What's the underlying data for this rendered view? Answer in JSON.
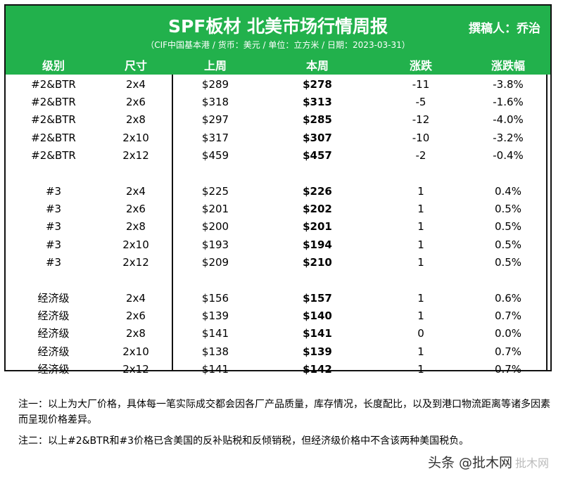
{
  "header": {
    "title": "SPF板材 北美市场行情周报",
    "author": "撰稿人：乔治",
    "subtitle": "（CIF中国基本港 / 货币：美元 / 单位：立方米 / 日期：2023-03-31）",
    "columns": [
      "级别",
      "尺寸",
      "上周",
      "本周",
      "涨跌",
      "涨跌幅"
    ],
    "bg_color": "#22b14c"
  },
  "groups": [
    {
      "rows": [
        {
          "grade": "#2&BTR",
          "size": "2x4",
          "last": "$289",
          "this": "$278",
          "change": "-11",
          "pct": "-3.8%"
        },
        {
          "grade": "#2&BTR",
          "size": "2x6",
          "last": "$318",
          "this": "$313",
          "change": "-5",
          "pct": "-1.6%"
        },
        {
          "grade": "#2&BTR",
          "size": "2x8",
          "last": "$297",
          "this": "$285",
          "change": "-12",
          "pct": "-4.0%"
        },
        {
          "grade": "#2&BTR",
          "size": "2x10",
          "last": "$317",
          "this": "$307",
          "change": "-10",
          "pct": "-3.2%"
        },
        {
          "grade": "#2&BTR",
          "size": "2x12",
          "last": "$459",
          "this": "$457",
          "change": "-2",
          "pct": "-0.4%"
        }
      ]
    },
    {
      "rows": [
        {
          "grade": "#3",
          "size": "2x4",
          "last": "$225",
          "this": "$226",
          "change": "1",
          "pct": "0.4%"
        },
        {
          "grade": "#3",
          "size": "2x6",
          "last": "$201",
          "this": "$202",
          "change": "1",
          "pct": "0.5%"
        },
        {
          "grade": "#3",
          "size": "2x8",
          "last": "$200",
          "this": "$201",
          "change": "1",
          "pct": "0.5%"
        },
        {
          "grade": "#3",
          "size": "2x10",
          "last": "$193",
          "this": "$194",
          "change": "1",
          "pct": "0.5%"
        },
        {
          "grade": "#3",
          "size": "2x12",
          "last": "$209",
          "this": "$210",
          "change": "1",
          "pct": "0.5%"
        }
      ]
    },
    {
      "rows": [
        {
          "grade": "经济级",
          "size": "2x4",
          "last": "$156",
          "this": "$157",
          "change": "1",
          "pct": "0.6%"
        },
        {
          "grade": "经济级",
          "size": "2x6",
          "last": "$139",
          "this": "$140",
          "change": "1",
          "pct": "0.7%"
        },
        {
          "grade": "经济级",
          "size": "2x8",
          "last": "$141",
          "this": "$141",
          "change": "0",
          "pct": "0.0%"
        },
        {
          "grade": "经济级",
          "size": "2x10",
          "last": "$138",
          "this": "$139",
          "change": "1",
          "pct": "0.7%"
        },
        {
          "grade": "经济级",
          "size": "2x12",
          "last": "$141",
          "this": "$142",
          "change": "1",
          "pct": "0.7%"
        }
      ]
    }
  ],
  "notes": [
    "注一：以上为大厂价格，具体每一笔实际成交都会因各厂产品质量，库存情况，长度配比，以及到港口物流距离等诸多因素而呈现价格差异。",
    "注二：以上#2&BTR和#3价格已含美国的反补贴税和反倾销税，但经济级价格中不含该两种美国税负。"
  ],
  "watermark": {
    "text": "头条 @批木网",
    "ghost": "批木网"
  }
}
